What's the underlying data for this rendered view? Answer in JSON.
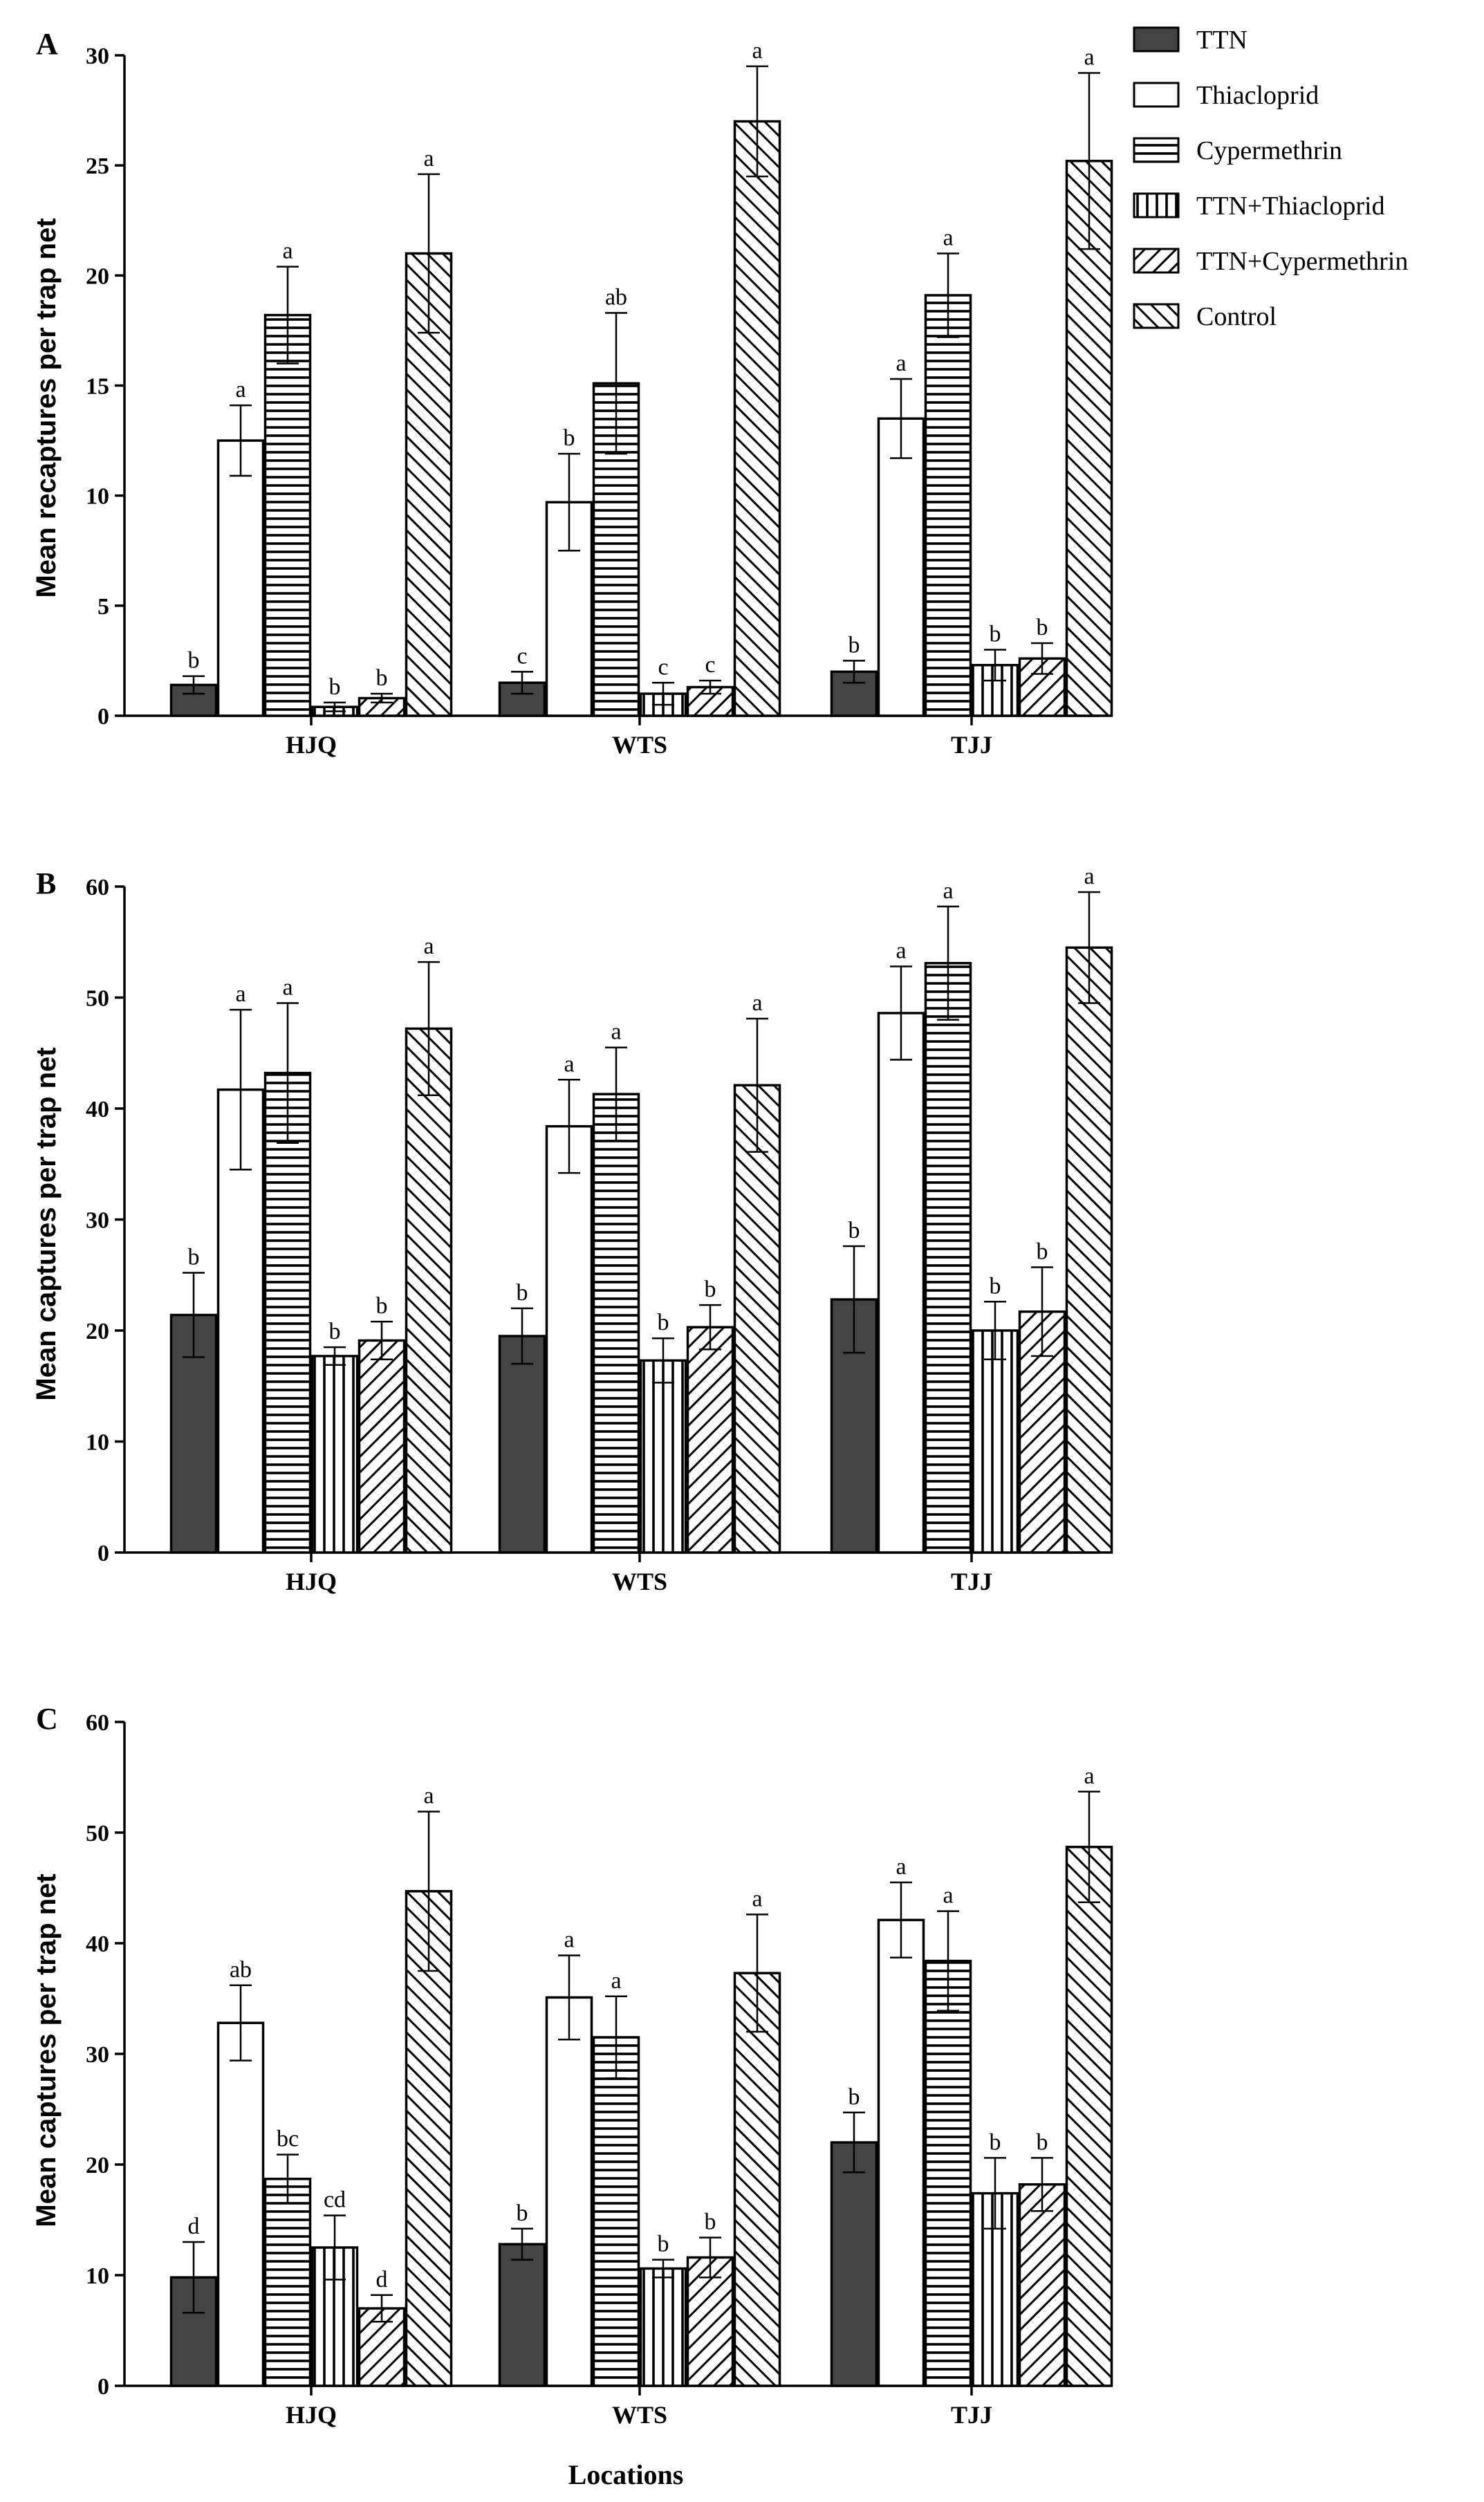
{
  "figure": {
    "xlabel": "Locations",
    "series_names": [
      "TTN",
      "Thiacloprid",
      "Cypermethrin",
      "TTN+Thiacloprid",
      "TTN+Cypermethrin",
      "Control"
    ],
    "series_patterns": [
      "solid",
      "blank",
      "horizontal",
      "vertical",
      "diag-up",
      "diag-down"
    ],
    "colors": {
      "solid": "#444444",
      "stroke": "#000000",
      "background": "#ffffff"
    }
  },
  "chart_data": [
    {
      "panel": "A",
      "type": "bar",
      "ylabel": "Mean recaptures per trap net",
      "xlabel": "",
      "ylim": [
        0,
        30
      ],
      "yticks": [
        0,
        5,
        10,
        15,
        20,
        25,
        30
      ],
      "categories": [
        "HJQ",
        "WTS",
        "TJJ"
      ],
      "series": [
        {
          "name": "TTN",
          "values": [
            1.4,
            1.5,
            2.0
          ],
          "errors": [
            0.4,
            0.5,
            0.5
          ],
          "letters": [
            "b",
            "c",
            "b"
          ]
        },
        {
          "name": "Thiacloprid",
          "values": [
            12.5,
            9.7,
            13.5
          ],
          "errors": [
            1.6,
            2.2,
            1.8
          ],
          "letters": [
            "a",
            "b",
            "a"
          ]
        },
        {
          "name": "Cypermethrin",
          "values": [
            18.2,
            15.1,
            19.1
          ],
          "errors": [
            2.2,
            3.2,
            1.9
          ],
          "letters": [
            "a",
            "ab",
            "a"
          ]
        },
        {
          "name": "TTN+Thiacloprid",
          "values": [
            0.4,
            1.0,
            2.3
          ],
          "errors": [
            0.2,
            0.5,
            0.7
          ],
          "letters": [
            "b",
            "c",
            "b"
          ]
        },
        {
          "name": "TTN+Cypermethrin",
          "values": [
            0.8,
            1.3,
            2.6
          ],
          "errors": [
            0.2,
            0.3,
            0.7
          ],
          "letters": [
            "b",
            "c",
            "b"
          ]
        },
        {
          "name": "Control",
          "values": [
            21.0,
            27.0,
            25.2
          ],
          "errors": [
            3.6,
            2.5,
            4.0
          ],
          "letters": [
            "a",
            "a",
            "a"
          ]
        }
      ]
    },
    {
      "panel": "B",
      "type": "bar",
      "ylabel": "Mean captures per trap net",
      "xlabel": "",
      "ylim": [
        0,
        60
      ],
      "yticks": [
        0,
        10,
        20,
        30,
        40,
        50,
        60
      ],
      "categories": [
        "HJQ",
        "WTS",
        "TJJ"
      ],
      "series": [
        {
          "name": "TTN",
          "values": [
            21.4,
            19.5,
            22.8
          ],
          "errors": [
            3.8,
            2.5,
            4.8
          ],
          "letters": [
            "b",
            "b",
            "b"
          ]
        },
        {
          "name": "Thiacloprid",
          "values": [
            41.7,
            38.4,
            48.6
          ],
          "errors": [
            7.2,
            4.2,
            4.2
          ],
          "letters": [
            "a",
            "a",
            "a"
          ]
        },
        {
          "name": "Cypermethrin",
          "values": [
            43.2,
            41.3,
            53.1
          ],
          "errors": [
            6.3,
            4.2,
            5.1
          ],
          "letters": [
            "a",
            "a",
            "a"
          ]
        },
        {
          "name": "TTN+Thiacloprid",
          "values": [
            17.7,
            17.3,
            20.0
          ],
          "errors": [
            0.8,
            2.0,
            2.6
          ],
          "letters": [
            "b",
            "b",
            "b"
          ]
        },
        {
          "name": "TTN+Cypermethrin",
          "values": [
            19.1,
            20.3,
            21.7
          ],
          "errors": [
            1.7,
            2.0,
            4.0
          ],
          "letters": [
            "b",
            "b",
            "b"
          ]
        },
        {
          "name": "Control",
          "values": [
            47.2,
            42.1,
            54.5
          ],
          "errors": [
            6.0,
            6.0,
            5.0
          ],
          "letters": [
            "a",
            "a",
            "a"
          ]
        }
      ]
    },
    {
      "panel": "C",
      "type": "bar",
      "ylabel": "Mean captures per trap net",
      "xlabel": "Locations",
      "ylim": [
        0,
        60
      ],
      "yticks": [
        0,
        10,
        20,
        30,
        40,
        50,
        60
      ],
      "categories": [
        "HJQ",
        "WTS",
        "TJJ"
      ],
      "series": [
        {
          "name": "TTN",
          "values": [
            9.8,
            12.8,
            22.0
          ],
          "errors": [
            3.2,
            1.4,
            2.7
          ],
          "letters": [
            "d",
            "b",
            "b"
          ]
        },
        {
          "name": "Thiacloprid",
          "values": [
            32.8,
            35.1,
            42.1
          ],
          "errors": [
            3.4,
            3.8,
            3.4
          ],
          "letters": [
            "ab",
            "a",
            "a"
          ]
        },
        {
          "name": "Cypermethrin",
          "values": [
            18.7,
            31.5,
            38.4
          ],
          "errors": [
            2.2,
            3.7,
            4.5
          ],
          "letters": [
            "bc",
            "a",
            "a"
          ]
        },
        {
          "name": "TTN+Thiacloprid",
          "values": [
            12.5,
            10.6,
            17.4
          ],
          "errors": [
            2.9,
            0.8,
            3.2
          ],
          "letters": [
            "cd",
            "b",
            "b"
          ]
        },
        {
          "name": "TTN+Cypermethrin",
          "values": [
            7.0,
            11.6,
            18.2
          ],
          "errors": [
            1.2,
            1.8,
            2.4
          ],
          "letters": [
            "d",
            "b",
            "b"
          ]
        },
        {
          "name": "Control",
          "values": [
            44.7,
            37.3,
            48.7
          ],
          "errors": [
            7.2,
            5.3,
            5.0
          ],
          "letters": [
            "a",
            "a",
            "a"
          ]
        }
      ]
    }
  ]
}
